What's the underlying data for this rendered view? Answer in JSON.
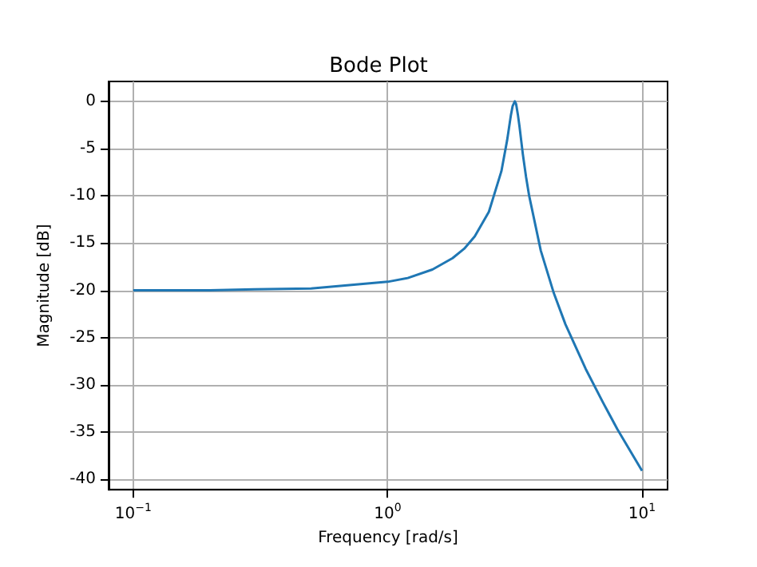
{
  "chart_data": {
    "type": "line",
    "title": "Bode Plot",
    "xlabel": "Frequency [rad/s]",
    "ylabel": "Magnitude [dB]",
    "x": [
      0.1,
      0.2,
      0.3,
      0.5,
      1,
      1.2,
      1.5,
      1.8,
      2,
      2.2,
      2.5,
      2.8,
      2.95,
      3,
      3.05,
      3.1,
      3.162,
      3.2,
      3.25,
      3.3,
      3.4,
      3.5,
      3.6,
      4,
      4.5,
      5,
      6,
      7,
      8,
      10
    ],
    "series": [
      {
        "color": "#1f77b4",
        "values": [
          -20.0,
          -20.0,
          -19.9,
          -19.8,
          -19.1,
          -18.7,
          -17.8,
          -16.6,
          -15.6,
          -14.3,
          -11.7,
          -7.4,
          -4.1,
          -2.8,
          -1.5,
          -0.5,
          0.0,
          -0.3,
          -1.4,
          -2.7,
          -5.6,
          -8.0,
          -10.0,
          -15.8,
          -20.3,
          -23.6,
          -28.3,
          -31.8,
          -34.7,
          -39.1
        ]
      }
    ],
    "log": "x",
    "xlim": [
      0.08,
      12.6
    ],
    "xticks": [
      {
        "value": 0.1,
        "label": "10$^{−1}$"
      },
      {
        "value": 1,
        "label": "10$^{0}$"
      },
      {
        "value": 10,
        "label": "10$^{1}$"
      }
    ],
    "ylim": [
      -41.1,
      2.1
    ],
    "yticks": [
      -40,
      -35,
      -30,
      -25,
      -20,
      -15,
      -10,
      -5,
      0
    ],
    "grid": true,
    "marker": "none",
    "line_style": "solid"
  }
}
